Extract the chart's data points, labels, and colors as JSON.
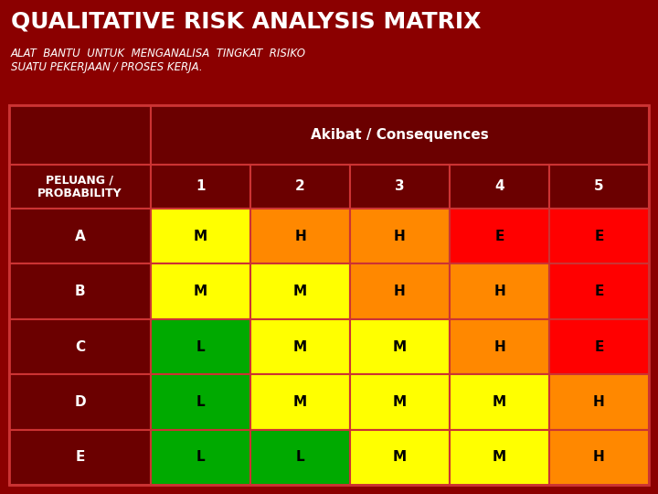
{
  "title": "QUALITATIVE RISK ANALYSIS MATRIX",
  "subtitle": "ALAT  BANTU  UNTUK  MENGANALISA  TINGKAT  RISIKO\nSUATU PEKERJAAN / PROSES KERJA.",
  "background_color": "#8B0000",
  "header_label": "Akibat / Consequences",
  "col_headers": [
    "1",
    "2",
    "3",
    "4",
    "5"
  ],
  "row_label_header": "PELUANG /\nPROBABILITY",
  "row_labels": [
    "A",
    "B",
    "C",
    "D",
    "E"
  ],
  "matrix": [
    [
      "M",
      "H",
      "H",
      "E",
      "E"
    ],
    [
      "M",
      "M",
      "H",
      "H",
      "E"
    ],
    [
      "L",
      "M",
      "M",
      "H",
      "E"
    ],
    [
      "L",
      "M",
      "M",
      "M",
      "H"
    ],
    [
      "L",
      "L",
      "M",
      "M",
      "H"
    ]
  ],
  "cell_colors": {
    "L": "#00AA00",
    "M": "#FFFF00",
    "H": "#FF8800",
    "E": "#FF0000"
  },
  "cell_text_color": "#000000",
  "border_color": "#CC3333",
  "table_bg": "#6B0000",
  "title_color": "#FFFFFF",
  "subtitle_color": "#FFFFFF",
  "title_fontsize": 18,
  "subtitle_fontsize": 8.5,
  "header_fontsize": 11,
  "cell_fontsize": 11
}
